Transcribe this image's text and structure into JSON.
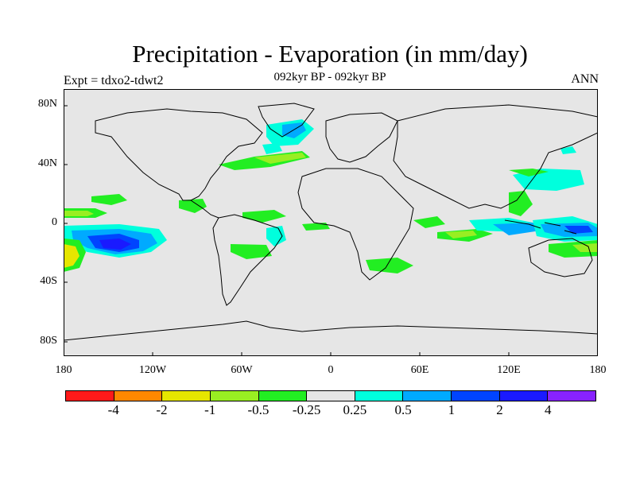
{
  "title": "Precipitation - Evaporation (in mm/day)",
  "subtitle": "092kyr BP - 092kyr BP",
  "left_label": "Expt = tdxo2-tdwt2",
  "right_label": "ANN",
  "lat_ticks": [
    "80N",
    "40N",
    "0",
    "40S",
    "80S"
  ],
  "lon_ticks": [
    "180",
    "120W",
    "60W",
    "0",
    "60E",
    "120E",
    "180"
  ],
  "colorbar": {
    "colors": [
      "#ff1a1a",
      "#ff8800",
      "#e6e600",
      "#99ee22",
      "#22ee22",
      "#e6e6e6",
      "#00ffdd",
      "#00aaff",
      "#0044ff",
      "#1a1aff",
      "#8822ff"
    ],
    "labels": [
      "-4",
      "-2",
      "-1",
      "-0.5",
      "-0.25",
      "0.25",
      "0.5",
      "1",
      "2",
      "4"
    ]
  },
  "colors": {
    "background_field": "#e6e6e6",
    "coastline": "#000000"
  }
}
